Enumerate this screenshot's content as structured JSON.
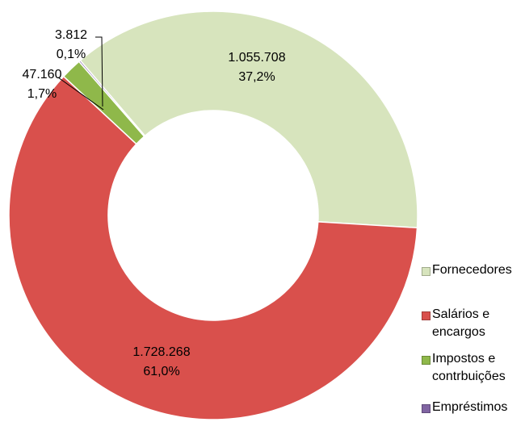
{
  "chart_data": {
    "type": "donut",
    "categories": [
      "Fornecedores",
      "Salários e encargos",
      "Impostos e contrbuições",
      "Empréstimos"
    ],
    "values": [
      1055708,
      1728268,
      47160,
      3812
    ],
    "value_labels": [
      "1.055.708",
      "1.728.268",
      "47.160",
      "3.812"
    ],
    "percent_labels": [
      "37,2%",
      "61,0%",
      "1,7%",
      "0,1%"
    ],
    "colors": [
      "#d7e4bd",
      "#d9504c",
      "#8fb84a",
      "#8064a2"
    ],
    "legend": "right"
  }
}
